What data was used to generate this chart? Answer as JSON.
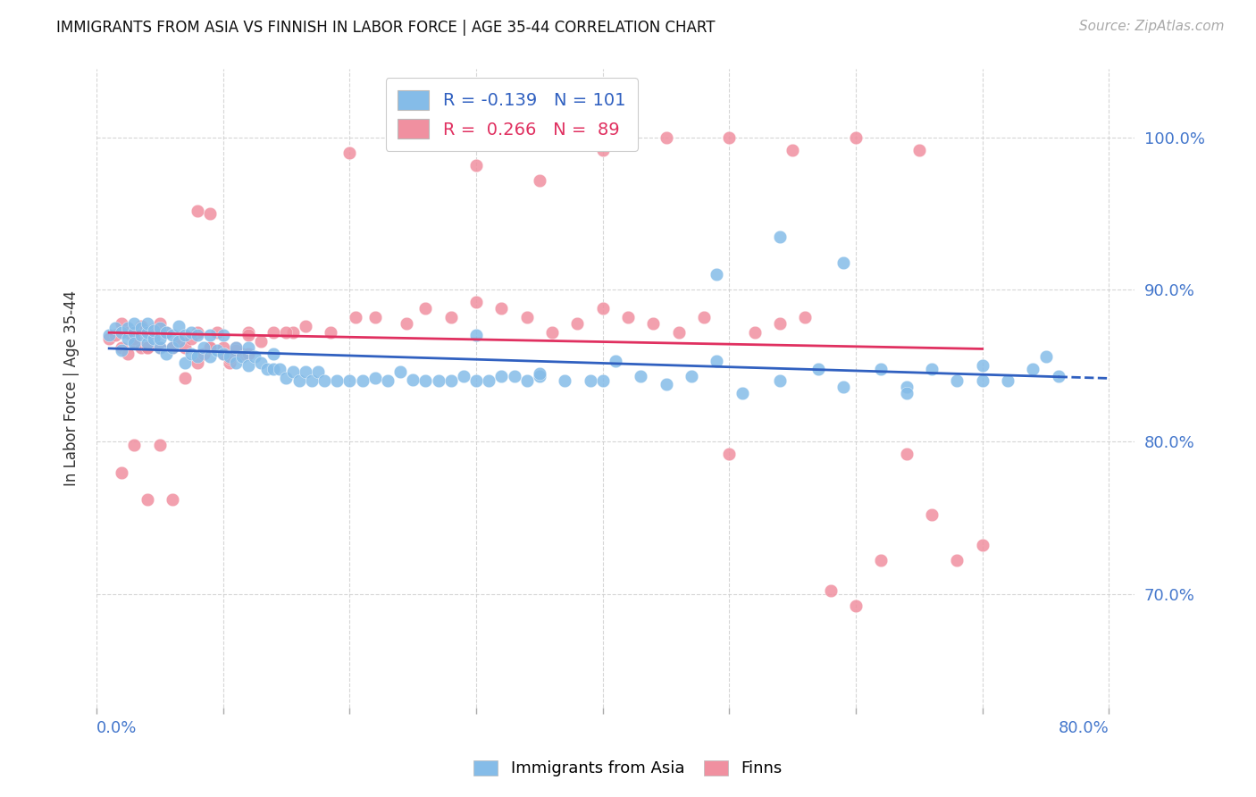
{
  "title": "IMMIGRANTS FROM ASIA VS FINNISH IN LABOR FORCE | AGE 35-44 CORRELATION CHART",
  "source": "Source: ZipAtlas.com",
  "ylabel": "In Labor Force | Age 35-44",
  "ytick_values": [
    0.7,
    0.8,
    0.9,
    1.0
  ],
  "xlim": [
    0.0,
    0.82
  ],
  "ylim": [
    0.625,
    1.045
  ],
  "color_asia": "#85BCE8",
  "color_finns": "#F090A0",
  "trendline_asia_color": "#3060C0",
  "trendline_finns_color": "#E03060",
  "legend_R_asia": "-0.139",
  "legend_N_asia": "101",
  "legend_R_finns": "0.266",
  "legend_N_finns": "89",
  "asia_x": [
    0.01,
    0.015,
    0.02,
    0.02,
    0.025,
    0.025,
    0.03,
    0.03,
    0.03,
    0.035,
    0.035,
    0.04,
    0.04,
    0.04,
    0.045,
    0.045,
    0.05,
    0.05,
    0.05,
    0.055,
    0.055,
    0.06,
    0.06,
    0.065,
    0.065,
    0.07,
    0.07,
    0.075,
    0.075,
    0.08,
    0.08,
    0.085,
    0.09,
    0.09,
    0.095,
    0.1,
    0.1,
    0.105,
    0.11,
    0.11,
    0.115,
    0.12,
    0.12,
    0.125,
    0.13,
    0.135,
    0.14,
    0.14,
    0.145,
    0.15,
    0.155,
    0.16,
    0.165,
    0.17,
    0.175,
    0.18,
    0.19,
    0.2,
    0.21,
    0.22,
    0.23,
    0.24,
    0.25,
    0.26,
    0.27,
    0.28,
    0.29,
    0.3,
    0.31,
    0.32,
    0.33,
    0.34,
    0.35,
    0.37,
    0.39,
    0.41,
    0.43,
    0.45,
    0.47,
    0.49,
    0.51,
    0.54,
    0.57,
    0.59,
    0.62,
    0.64,
    0.66,
    0.68,
    0.7,
    0.72,
    0.74,
    0.76,
    0.49,
    0.54,
    0.59,
    0.64,
    0.7,
    0.75,
    0.3,
    0.35,
    0.4
  ],
  "asia_y": [
    0.87,
    0.875,
    0.872,
    0.86,
    0.868,
    0.875,
    0.872,
    0.865,
    0.878,
    0.87,
    0.875,
    0.865,
    0.872,
    0.878,
    0.868,
    0.873,
    0.862,
    0.868,
    0.875,
    0.858,
    0.872,
    0.862,
    0.87,
    0.866,
    0.876,
    0.852,
    0.87,
    0.858,
    0.872,
    0.856,
    0.87,
    0.862,
    0.856,
    0.87,
    0.86,
    0.858,
    0.87,
    0.856,
    0.852,
    0.862,
    0.856,
    0.85,
    0.862,
    0.856,
    0.852,
    0.848,
    0.848,
    0.858,
    0.848,
    0.842,
    0.846,
    0.84,
    0.846,
    0.84,
    0.846,
    0.84,
    0.84,
    0.84,
    0.84,
    0.842,
    0.84,
    0.846,
    0.841,
    0.84,
    0.84,
    0.84,
    0.843,
    0.84,
    0.84,
    0.843,
    0.843,
    0.84,
    0.843,
    0.84,
    0.84,
    0.853,
    0.843,
    0.838,
    0.843,
    0.853,
    0.832,
    0.84,
    0.848,
    0.836,
    0.848,
    0.836,
    0.848,
    0.84,
    0.84,
    0.84,
    0.848,
    0.843,
    0.91,
    0.935,
    0.918,
    0.832,
    0.85,
    0.856,
    0.87,
    0.845,
    0.84
  ],
  "finns_x": [
    0.01,
    0.02,
    0.02,
    0.025,
    0.025,
    0.03,
    0.03,
    0.035,
    0.035,
    0.04,
    0.04,
    0.045,
    0.05,
    0.05,
    0.055,
    0.06,
    0.065,
    0.07,
    0.08,
    0.08,
    0.085,
    0.09,
    0.095,
    0.1,
    0.105,
    0.11,
    0.115,
    0.12,
    0.13,
    0.14,
    0.155,
    0.165,
    0.185,
    0.205,
    0.22,
    0.245,
    0.26,
    0.28,
    0.3,
    0.32,
    0.34,
    0.36,
    0.38,
    0.4,
    0.42,
    0.44,
    0.46,
    0.48,
    0.5,
    0.52,
    0.54,
    0.56,
    0.58,
    0.6,
    0.62,
    0.64,
    0.66,
    0.68,
    0.7,
    0.015,
    0.03,
    0.045,
    0.06,
    0.075,
    0.09,
    0.105,
    0.12,
    0.15,
    0.2,
    0.25,
    0.3,
    0.35,
    0.4,
    0.45,
    0.5,
    0.55,
    0.6,
    0.65,
    0.07,
    0.08,
    0.09,
    0.1,
    0.11,
    0.12,
    0.04,
    0.05,
    0.06,
    0.02,
    0.03
  ],
  "finns_y": [
    0.868,
    0.862,
    0.878,
    0.858,
    0.872,
    0.872,
    0.866,
    0.862,
    0.876,
    0.862,
    0.862,
    0.872,
    0.862,
    0.878,
    0.872,
    0.862,
    0.866,
    0.862,
    0.852,
    0.872,
    0.858,
    0.862,
    0.872,
    0.862,
    0.852,
    0.862,
    0.858,
    0.872,
    0.866,
    0.872,
    0.872,
    0.876,
    0.872,
    0.882,
    0.882,
    0.878,
    0.888,
    0.882,
    0.892,
    0.888,
    0.882,
    0.872,
    0.878,
    0.888,
    0.882,
    0.878,
    0.872,
    0.882,
    0.792,
    0.872,
    0.878,
    0.882,
    0.702,
    0.692,
    0.722,
    0.792,
    0.752,
    0.722,
    0.732,
    0.87,
    0.868,
    0.874,
    0.862,
    0.868,
    0.862,
    0.855,
    0.87,
    0.872,
    0.99,
    1.0,
    0.982,
    0.972,
    0.992,
    1.0,
    1.0,
    0.992,
    1.0,
    0.992,
    0.842,
    0.952,
    0.95,
    0.858,
    0.86,
    0.858,
    0.762,
    0.798,
    0.762,
    0.78,
    0.798
  ]
}
